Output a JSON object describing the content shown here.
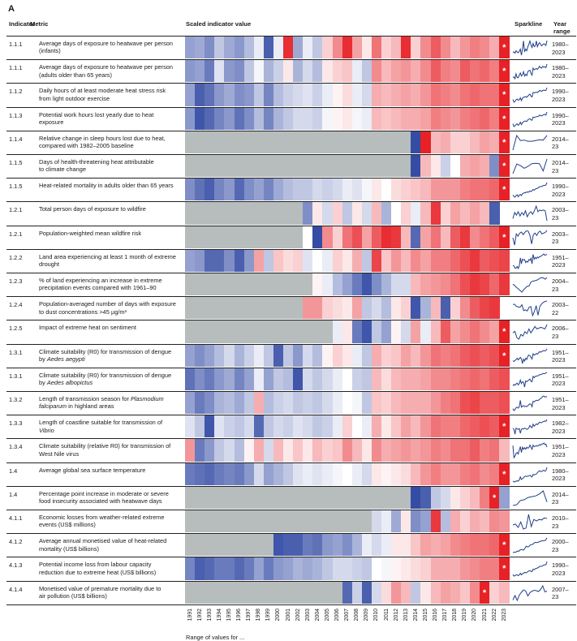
{
  "panel_label": "A",
  "headers": {
    "indicator": "Indicator",
    "metric": "Metric",
    "scaled_value": "Scaled indicator value",
    "sparkline": "Sparkline",
    "year_range": "Year range"
  },
  "footer_note": "Range of values for ...",
  "star_symbol": "*",
  "colors": {
    "low": "#2a43a0",
    "mid": "#ffffff",
    "high": "#e5161c",
    "na": "#b7bcbd",
    "spark": "#1f3f87"
  },
  "chart_data": {
    "type": "heatmap",
    "title": "Scaled indicator value",
    "x_years": [
      1991,
      1992,
      1993,
      1994,
      1995,
      1996,
      1997,
      1998,
      1999,
      2000,
      2001,
      2002,
      2003,
      2004,
      2005,
      2006,
      2007,
      2008,
      2009,
      2010,
      2011,
      2012,
      2013,
      2014,
      2015,
      2016,
      2017,
      2018,
      2019,
      2020,
      2021,
      2022,
      2023
    ],
    "value_scale": [
      -1,
      1
    ],
    "rows": [
      {
        "indicator": "1.1.1",
        "metric": [
          "Average days of exposure to heatwave per person",
          "(infants)"
        ],
        "year_range": [
          "1980–",
          "2023"
        ],
        "star_index": 32,
        "values": [
          -0.5,
          -0.45,
          -0.6,
          -0.3,
          -0.45,
          -0.55,
          -0.35,
          -0.1,
          -0.85,
          -0.1,
          0.9,
          -0.45,
          -0.1,
          -0.3,
          0.2,
          0.5,
          0.9,
          0.4,
          0.1,
          0.6,
          0.2,
          0.3,
          0.9,
          0.2,
          0.5,
          0.7,
          0.5,
          0.3,
          0.45,
          0.55,
          0.5,
          0.35,
          0.95
        ]
      },
      {
        "indicator": "1.1.1",
        "metric": [
          "Average days of exposure to heatwave per person",
          "(adults older than 65 years)"
        ],
        "year_range": [
          "1980–",
          "2023"
        ],
        "star_index": 32,
        "values": [
          -0.55,
          -0.5,
          -0.7,
          -0.15,
          -0.55,
          -0.6,
          -0.3,
          -0.05,
          -0.4,
          -0.25,
          0.1,
          -0.4,
          -0.2,
          -0.35,
          0.1,
          0.2,
          0.25,
          -0.1,
          -0.3,
          0.5,
          0.3,
          0.4,
          0.45,
          0.35,
          0.5,
          0.7,
          0.55,
          0.5,
          0.7,
          0.6,
          0.65,
          0.55,
          0.95
        ]
      },
      {
        "indicator": "1.1.2",
        "metric": [
          "Daily hours of at least moderate heat stress risk",
          "from light outdoor exercise"
        ],
        "year_range": [
          "1990–",
          "2023"
        ],
        "star_index": 32,
        "values": [
          -0.5,
          -0.85,
          -0.75,
          -0.55,
          -0.45,
          -0.6,
          -0.55,
          -0.3,
          -0.65,
          -0.35,
          -0.25,
          -0.2,
          -0.15,
          -0.25,
          -0.1,
          0.05,
          0.15,
          -0.1,
          -0.2,
          0.35,
          0.3,
          0.35,
          0.4,
          0.35,
          0.45,
          0.6,
          0.55,
          0.5,
          0.6,
          0.65,
          0.6,
          0.6,
          0.95
        ]
      },
      {
        "indicator": "1.1.3",
        "metric": [
          "Potential work hours lost yearly due to heat",
          "exposure"
        ],
        "year_range": [
          "1990–",
          "2023"
        ],
        "star_index": 32,
        "values": [
          -0.55,
          -0.9,
          -0.8,
          -0.65,
          -0.55,
          -0.75,
          -0.6,
          -0.35,
          -0.65,
          -0.4,
          -0.3,
          -0.2,
          -0.2,
          -0.25,
          -0.05,
          0.05,
          0.1,
          -0.05,
          -0.1,
          0.3,
          0.25,
          0.3,
          0.35,
          0.35,
          0.4,
          0.55,
          0.5,
          0.45,
          0.55,
          0.6,
          0.65,
          0.55,
          0.95
        ]
      },
      {
        "indicator": "1.1.4",
        "metric": [
          "Relative change in sleep hours lost due to heat,",
          "compared with 1982–2005 baseline"
        ],
        "year_range": [
          "2014–",
          "23"
        ],
        "star_index": 32,
        "start_index": 23,
        "values": [
          -0.95,
          0.95,
          0.3,
          0.35,
          0.2,
          0.2,
          0.3,
          0.4,
          0.35,
          0.95
        ]
      },
      {
        "indicator": "1.1.5",
        "metric": [
          "Days of health-threatening heat attributable",
          "to climate change"
        ],
        "year_range": [
          "2014–",
          "23"
        ],
        "star_index": 32,
        "start_index": 23,
        "values": [
          -0.95,
          0.3,
          0.1,
          -0.25,
          0.0,
          0.35,
          0.4,
          0.35,
          -0.6,
          0.95
        ]
      },
      {
        "indicator": "1.1.5",
        "metric": [
          "Heat-related mortality in adults older than 65 years"
        ],
        "year_range": [
          "1990–",
          "2023"
        ],
        "star_index": 32,
        "values": [
          -0.6,
          -0.75,
          -0.85,
          -0.65,
          -0.55,
          -0.8,
          -0.6,
          -0.5,
          -0.65,
          -0.45,
          -0.35,
          -0.3,
          -0.3,
          -0.2,
          -0.25,
          -0.2,
          -0.1,
          -0.15,
          -0.05,
          0.1,
          0.0,
          0.15,
          0.2,
          0.25,
          0.3,
          0.45,
          0.45,
          0.45,
          0.55,
          0.6,
          0.6,
          0.65,
          0.95
        ]
      },
      {
        "indicator": "1.2.1",
        "metric": [
          "Total person days of exposure to wildfire"
        ],
        "year_range": [
          "2003–",
          "23"
        ],
        "star_index": -1,
        "start_index": 12,
        "values": [
          -0.6,
          0.1,
          -0.2,
          0.2,
          -0.3,
          0.1,
          -0.2,
          0.3,
          -0.4,
          0.0,
          0.2,
          -0.1,
          0.3,
          0.85,
          0.2,
          0.4,
          0.3,
          0.4,
          0.3,
          -0.85
        ]
      },
      {
        "indicator": "1.2.1",
        "metric": [
          "Population-weighted mean wildfire risk"
        ],
        "year_range": [
          "2003–",
          "23"
        ],
        "star_index": 32,
        "start_index": 12,
        "values": [
          0.0,
          -0.95,
          0.5,
          0.2,
          0.6,
          0.75,
          0.4,
          0.7,
          0.9,
          0.85,
          0.3,
          -0.8,
          0.4,
          0.6,
          0.3,
          0.7,
          0.85,
          0.5,
          0.6,
          0.7,
          0.95
        ]
      },
      {
        "indicator": "1.2.2",
        "metric": [
          "Land area experiencing at least 1 month of extreme",
          "drought"
        ],
        "year_range": [
          "1951–",
          "2023"
        ],
        "star_index": -1,
        "values": [
          -0.5,
          -0.55,
          -0.8,
          -0.8,
          -0.6,
          -0.85,
          -0.55,
          0.4,
          -0.3,
          0.25,
          0.15,
          0.2,
          -0.15,
          0.0,
          -0.1,
          0.2,
          0.1,
          0.35,
          -0.3,
          0.8,
          0.25,
          0.45,
          0.3,
          0.5,
          0.4,
          0.55,
          0.55,
          0.65,
          0.75,
          0.85,
          0.7,
          0.75,
          0.8
        ]
      },
      {
        "indicator": "1.2.3",
        "metric": [
          "% of land experiencing an increase in extreme",
          "precipitation events compared with 1961–90"
        ],
        "year_range": [
          "2004–",
          "23"
        ],
        "star_index": -1,
        "start_index": 13,
        "values": [
          0.05,
          -0.1,
          -0.35,
          -0.5,
          -0.7,
          -0.9,
          -0.6,
          -0.4,
          -0.2,
          -0.2,
          0.3,
          0.4,
          0.45,
          0.5,
          0.6,
          0.75,
          0.85,
          0.8,
          0.65,
          0.85
        ]
      },
      {
        "indicator": "1.2.4",
        "metric": [
          "Population-averaged number of days with exposure",
          "to dust concentrations >45 µg/m³"
        ],
        "year_range": [
          "2003–",
          "22"
        ],
        "star_index": -1,
        "start_index": 12,
        "values": [
          0.45,
          0.45,
          0.2,
          0.15,
          0.1,
          0.4,
          -0.3,
          -0.2,
          -0.35,
          0.1,
          0.2,
          -0.9,
          -0.4,
          0.3,
          -0.85,
          0.2,
          0.5,
          0.7,
          0.8,
          0.85
        ]
      },
      {
        "indicator": "1.2.5",
        "metric": [
          "Impact of extreme heat on sentiment"
        ],
        "year_range": [
          "2006–",
          "23"
        ],
        "star_index": 32,
        "start_index": 15,
        "values": [
          -0.1,
          0.1,
          -0.7,
          -0.9,
          -0.3,
          -0.5,
          0.05,
          -0.2,
          0.4,
          -0.1,
          0.3,
          0.7,
          0.4,
          0.5,
          0.6,
          0.5,
          0.4,
          0.95
        ]
      },
      {
        "indicator": "1.3.1",
        "metric": [
          "Climate suitability (R0) for transmission of dengue",
          "by Aedes aegypti"
        ],
        "italic_word": "Aedes aegypti",
        "year_range": [
          "1951–",
          "2023"
        ],
        "star_index": 32,
        "values": [
          -0.5,
          -0.6,
          -0.5,
          -0.35,
          -0.2,
          -0.4,
          -0.25,
          -0.1,
          -0.3,
          -0.85,
          -0.3,
          -0.55,
          -0.2,
          -0.35,
          0.05,
          0.2,
          0.1,
          -0.1,
          -0.3,
          0.35,
          0.2,
          0.25,
          0.4,
          0.3,
          0.45,
          0.6,
          0.55,
          0.6,
          0.7,
          0.75,
          0.7,
          0.75,
          0.95
        ]
      },
      {
        "indicator": "1.3.1",
        "metric": [
          "Climate suitability (R0) for transmission of dengue",
          "by Aedes albopictus"
        ],
        "italic_word": "Aedes albopictus",
        "year_range": [
          "1951–",
          "2023"
        ],
        "star_index": -1,
        "values": [
          -0.75,
          -0.6,
          -0.7,
          -0.55,
          -0.45,
          -0.65,
          -0.5,
          -0.1,
          -0.5,
          -0.3,
          -0.35,
          -0.9,
          -0.2,
          -0.3,
          -0.2,
          -0.1,
          0.0,
          -0.25,
          -0.3,
          0.3,
          0.15,
          0.3,
          0.35,
          0.35,
          0.4,
          0.5,
          0.5,
          0.55,
          0.6,
          0.65,
          0.6,
          0.7,
          0.75
        ]
      },
      {
        "indicator": "1.3.2",
        "metric": [
          "Length of transmission season for Plasmodium",
          "falciparum in highland areas"
        ],
        "italic_word": "Plasmodium falciparum",
        "year_range": [
          "1951–",
          "2023"
        ],
        "star_index": -1,
        "values": [
          -0.5,
          -0.7,
          -0.6,
          -0.4,
          -0.35,
          -0.45,
          -0.3,
          0.35,
          -0.35,
          -0.25,
          -0.2,
          -0.3,
          -0.25,
          -0.3,
          -0.2,
          -0.1,
          0.0,
          -0.05,
          -0.3,
          0.25,
          0.2,
          0.3,
          0.35,
          0.35,
          0.35,
          0.45,
          0.55,
          0.6,
          0.75,
          0.8,
          0.7,
          0.7,
          0.75
        ]
      },
      {
        "indicator": "1.3.3",
        "metric": [
          "Length of coastline suitable for transmission of",
          "Vibrio"
        ],
        "italic_word": "Vibrio",
        "year_range": [
          "1982–",
          "2023"
        ],
        "star_index": 32,
        "values": [
          -0.15,
          -0.3,
          -0.9,
          -0.15,
          -0.25,
          -0.3,
          -0.2,
          -0.8,
          -0.3,
          -0.2,
          -0.25,
          -0.15,
          -0.2,
          -0.3,
          -0.25,
          -0.1,
          0.2,
          0.0,
          -0.1,
          0.35,
          0.1,
          0.25,
          0.4,
          0.3,
          0.45,
          0.6,
          0.55,
          0.55,
          0.65,
          0.7,
          0.75,
          0.7,
          0.95
        ]
      },
      {
        "indicator": "1.3.4",
        "metric": [
          "Climate suitability (relative R0) for transmission of",
          "West Nile virus"
        ],
        "year_range": [
          "1951–",
          "2023"
        ],
        "star_index": -1,
        "values": [
          0.45,
          -0.7,
          -0.55,
          -0.3,
          -0.2,
          -0.35,
          0.05,
          0.35,
          -0.2,
          0.3,
          0.1,
          0.25,
          0.1,
          0.3,
          0.2,
          0.25,
          0.5,
          0.3,
          0.1,
          0.5,
          0.35,
          0.4,
          0.45,
          0.4,
          0.45,
          0.55,
          0.5,
          0.6,
          0.6,
          0.7,
          0.55,
          0.6,
          0.3
        ]
      },
      {
        "indicator": "1.4",
        "metric": [
          "Average global sea surface temperature"
        ],
        "year_range": [
          "1980–",
          "2023"
        ],
        "star_index": 32,
        "values": [
          -0.7,
          -0.75,
          -0.8,
          -0.7,
          -0.65,
          -0.7,
          -0.55,
          -0.2,
          -0.5,
          -0.4,
          -0.3,
          -0.15,
          -0.1,
          -0.15,
          -0.1,
          -0.05,
          0.0,
          -0.1,
          -0.2,
          0.1,
          0.05,
          0.1,
          0.15,
          0.3,
          0.45,
          0.55,
          0.45,
          0.45,
          0.55,
          0.6,
          0.5,
          0.55,
          0.95
        ]
      },
      {
        "indicator": "1.4",
        "metric": [
          "Percentage point increase in moderate or severe",
          "food insecurity associated with heatwave days"
        ],
        "year_range": [
          "2014–",
          "23"
        ],
        "star_index": 31,
        "start_index": 23,
        "values": [
          -0.95,
          -0.85,
          -0.3,
          -0.2,
          0.1,
          0.2,
          0.3,
          0.55,
          0.95,
          -0.5
        ]
      },
      {
        "indicator": "4.1.1",
        "metric": [
          "Economic losses from weather-related extreme",
          "events (US$ millions)"
        ],
        "year_range": [
          "2010–",
          "23"
        ],
        "star_index": -1,
        "start_index": 19,
        "values": [
          -0.2,
          -0.1,
          -0.45,
          0.1,
          -0.6,
          -0.5,
          0.85,
          -0.35,
          0.35,
          0.2,
          0.35,
          0.3,
          0.5,
          0.45
        ]
      },
      {
        "indicator": "4.1.2",
        "metric": [
          "Average annual monetised value of heat-related",
          "mortality (US$ billions)"
        ],
        "year_range": [
          "2000–",
          "23"
        ],
        "star_index": 32,
        "start_index": 9,
        "values": [
          -0.9,
          -0.85,
          -0.85,
          -0.7,
          -0.75,
          -0.55,
          -0.5,
          -0.6,
          -0.4,
          -0.1,
          -0.2,
          -0.1,
          0.1,
          0.1,
          0.25,
          0.4,
          0.35,
          0.4,
          0.5,
          0.55,
          0.6,
          0.6,
          0.65,
          0.95
        ]
      },
      {
        "indicator": "4.1.3",
        "metric": [
          "Potential income loss from labour capacity",
          "reduction due to extreme heat (US$ billions)"
        ],
        "year_range": [
          "1990–",
          "2023"
        ],
        "star_index": 32,
        "values": [
          -0.65,
          -0.85,
          -0.8,
          -0.7,
          -0.7,
          -0.8,
          -0.7,
          -0.5,
          -0.7,
          -0.55,
          -0.5,
          -0.4,
          -0.45,
          -0.4,
          -0.3,
          -0.2,
          -0.2,
          -0.25,
          -0.3,
          0.0,
          -0.05,
          0.05,
          0.1,
          0.15,
          0.2,
          0.35,
          0.35,
          0.35,
          0.45,
          0.5,
          0.55,
          0.55,
          0.95
        ]
      },
      {
        "indicator": "4.1.4",
        "metric": [
          "Monetised value of premature mortality due to",
          "air pollution (US$ billions)"
        ],
        "year_range": [
          "2007–",
          "23"
        ],
        "star_index": 30,
        "start_index": 16,
        "values": [
          -0.8,
          -0.25,
          -0.85,
          -0.2,
          0.15,
          0.45,
          0.3,
          -0.3,
          0.1,
          0.3,
          0.4,
          0.35,
          0.25,
          0.5,
          0.95,
          0.2,
          0.3
        ]
      }
    ]
  }
}
